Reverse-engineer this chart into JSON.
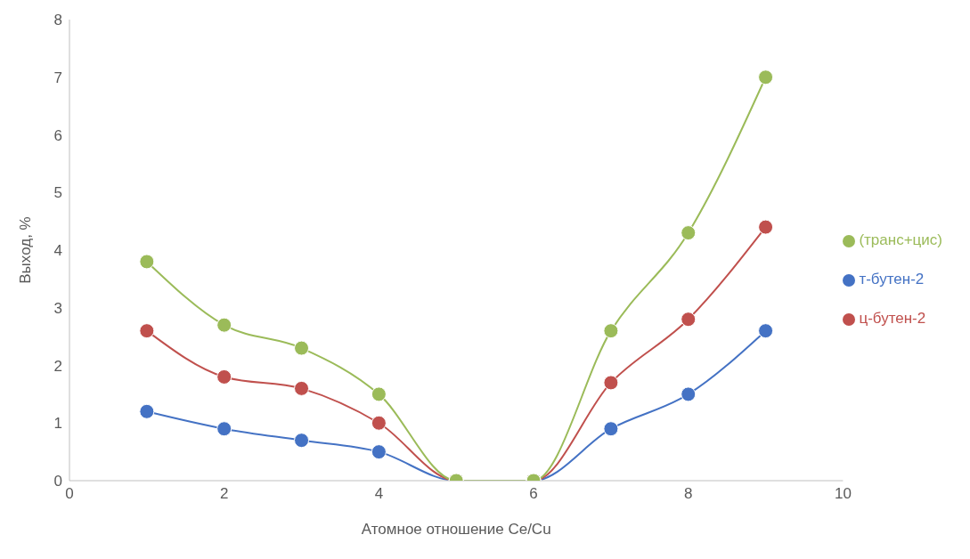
{
  "chart_data": {
    "type": "line",
    "xlabel": "Атомное отношение Ce/Cu",
    "ylabel": "Выход, %",
    "x": [
      1,
      2,
      3,
      4,
      5,
      6,
      7,
      8,
      9
    ],
    "series": [
      {
        "name": "т-бутен-2",
        "color": "#4472c4",
        "values": [
          1.2,
          0.9,
          0.7,
          0.5,
          0,
          0,
          0.9,
          1.5,
          2.6
        ]
      },
      {
        "name": "ц-бутен-2",
        "color": "#c0504d",
        "values": [
          2.6,
          1.8,
          1.6,
          1.0,
          0,
          0,
          1.7,
          2.8,
          4.4
        ]
      },
      {
        "name": "(транс+цис)",
        "color": "#9bbb59",
        "values": [
          3.8,
          2.7,
          2.3,
          1.5,
          0,
          0,
          2.6,
          4.3,
          7.0
        ]
      }
    ],
    "xlim": [
      0,
      10
    ],
    "xticks": [
      0,
      2,
      4,
      6,
      8,
      10
    ],
    "ylim": [
      0,
      8
    ],
    "yticks": [
      0,
      1,
      2,
      3,
      4,
      5,
      6,
      7,
      8
    ],
    "grid": false,
    "legend": "right",
    "marker": "circle",
    "line_style": "solid"
  }
}
